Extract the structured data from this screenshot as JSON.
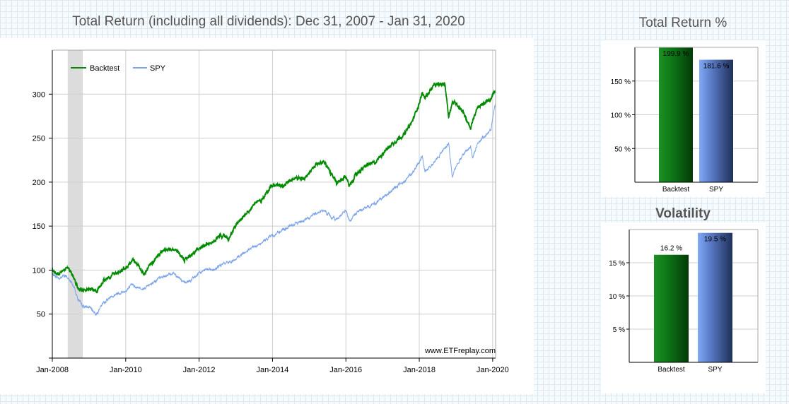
{
  "main_title": "Total Return (including all dividends): Dec 31, 2007 - Jan 31, 2020",
  "return_title": "Total Return %",
  "volatility_title": "Volatility",
  "watermark": "www.ETFreplay.com",
  "colors": {
    "backtest": "#008a00",
    "spy": "#7aa3ea",
    "recession": "#dcdcdc",
    "grid": "#cfcfcf"
  },
  "chart_data": [
    {
      "type": "line",
      "title": "Total Return (including all dividends): Dec 31, 2007 - Jan 31, 2020",
      "xlabel": "",
      "ylabel": "",
      "xlim": [
        2008.0,
        2020.08
      ],
      "ylim": [
        0,
        350
      ],
      "yticks": [
        50,
        100,
        150,
        200,
        250,
        300
      ],
      "xticks": [
        2008,
        2010,
        2012,
        2014,
        2016,
        2018,
        2020
      ],
      "xtick_labels": [
        "Jan-2008",
        "Jan-2010",
        "Jan-2012",
        "Jan-2014",
        "Jan-2016",
        "Jan-2018",
        "Jan-2020"
      ],
      "legend": {
        "placement": "top-left",
        "entries": [
          "Backtest",
          "SPY"
        ]
      },
      "shaded_period": [
        2008.42,
        2008.83
      ],
      "series": [
        {
          "name": "Backtest",
          "x": [
            2008.0,
            2008.1,
            2008.2,
            2008.3,
            2008.4,
            2008.5,
            2008.6,
            2008.65,
            2008.7,
            2008.8,
            2009.0,
            2009.2,
            2009.25,
            2009.4,
            2009.6,
            2009.8,
            2010.0,
            2010.2,
            2010.3,
            2010.5,
            2010.6,
            2010.8,
            2011.0,
            2011.3,
            2011.45,
            2011.6,
            2011.75,
            2012.0,
            2012.2,
            2012.4,
            2012.6,
            2012.8,
            2013.0,
            2013.3,
            2013.5,
            2013.7,
            2013.9,
            2014.05,
            2014.3,
            2014.6,
            2014.85,
            2015.0,
            2015.2,
            2015.4,
            2015.6,
            2015.75,
            2016.0,
            2016.1,
            2016.3,
            2016.6,
            2016.8,
            2017.0,
            2017.3,
            2017.6,
            2017.8,
            2018.0,
            2018.08,
            2018.15,
            2018.4,
            2018.7,
            2018.8,
            2018.9,
            2019.0,
            2019.2,
            2019.4,
            2019.45,
            2019.6,
            2019.8,
            2019.95,
            2020.05,
            2020.08
          ],
          "values": [
            100,
            97,
            96,
            100,
            104,
            99,
            90,
            84,
            78,
            78,
            78,
            76,
            80,
            88,
            93,
            98,
            102,
            112,
            107,
            95,
            102,
            112,
            123,
            124,
            120,
            112,
            116,
            125,
            130,
            132,
            140,
            136,
            150,
            165,
            175,
            180,
            192,
            198,
            196,
            205,
            205,
            210,
            220,
            224,
            210,
            198,
            206,
            196,
            210,
            220,
            222,
            233,
            245,
            255,
            268,
            290,
            301,
            296,
            310,
            312,
            275,
            290,
            290,
            280,
            260,
            270,
            285,
            290,
            295,
            303,
            302
          ]
        },
        {
          "name": "SPY",
          "x": [
            2008.0,
            2008.1,
            2008.2,
            2008.3,
            2008.4,
            2008.5,
            2008.6,
            2008.7,
            2008.8,
            2008.9,
            2009.0,
            2009.1,
            2009.2,
            2009.4,
            2009.6,
            2009.8,
            2010.0,
            2010.2,
            2010.3,
            2010.5,
            2010.6,
            2010.8,
            2011.0,
            2011.3,
            2011.45,
            2011.6,
            2011.75,
            2012.0,
            2012.2,
            2012.4,
            2012.6,
            2012.8,
            2013.0,
            2013.3,
            2013.5,
            2013.7,
            2013.9,
            2014.05,
            2014.3,
            2014.6,
            2014.85,
            2015.0,
            2015.2,
            2015.4,
            2015.6,
            2015.75,
            2016.0,
            2016.1,
            2016.3,
            2016.6,
            2016.8,
            2017.0,
            2017.3,
            2017.6,
            2017.8,
            2018.0,
            2018.08,
            2018.15,
            2018.4,
            2018.7,
            2018.8,
            2018.9,
            2019.0,
            2019.2,
            2019.4,
            2019.45,
            2019.6,
            2019.8,
            2019.95,
            2020.05,
            2020.08
          ],
          "values": [
            95,
            93,
            90,
            94,
            92,
            87,
            80,
            67,
            60,
            58,
            58,
            54,
            50,
            63,
            70,
            74,
            76,
            84,
            80,
            79,
            82,
            88,
            92,
            97,
            92,
            85,
            88,
            96,
            102,
            100,
            106,
            109,
            112,
            122,
            126,
            130,
            138,
            140,
            146,
            152,
            157,
            160,
            165,
            168,
            160,
            158,
            168,
            155,
            166,
            172,
            176,
            182,
            192,
            202,
            210,
            222,
            230,
            212,
            222,
            240,
            244,
            206,
            218,
            232,
            240,
            228,
            245,
            252,
            260,
            285,
            290
          ]
        }
      ]
    },
    {
      "type": "bar",
      "title": "Total Return %",
      "categories": [
        "Backtest",
        "SPY"
      ],
      "values": [
        199.9,
        181.6
      ],
      "data_labels": [
        "199.9 %",
        "181.6 %"
      ],
      "ylim": [
        0,
        200
      ],
      "yticks": [
        50,
        100,
        150
      ],
      "ytick_labels": [
        "50 %",
        "100 %",
        "150 %"
      ]
    },
    {
      "type": "bar",
      "title": "Volatility",
      "categories": [
        "Backtest",
        "SPY"
      ],
      "values": [
        16.2,
        19.5
      ],
      "data_labels": [
        "16.2 %",
        "19.5 %"
      ],
      "ylim": [
        0,
        20
      ],
      "yticks": [
        5,
        10,
        15
      ],
      "ytick_labels": [
        "5 %",
        "10 %",
        "15 %"
      ]
    }
  ]
}
